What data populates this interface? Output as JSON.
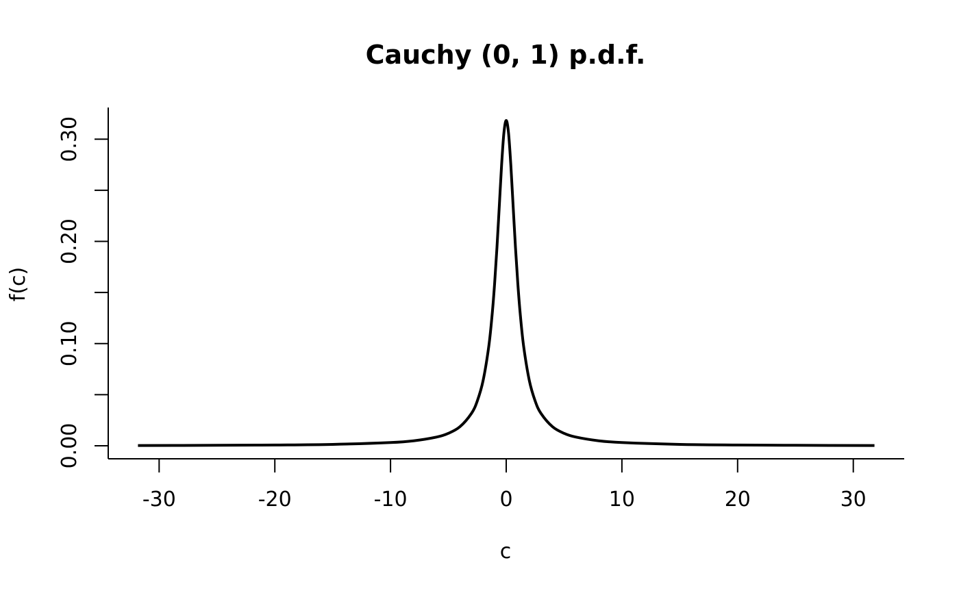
{
  "chart_data": {
    "type": "line",
    "title": "Cauchy (0, 1) p.d.f.",
    "xlabel": "c",
    "ylabel": "f(c)",
    "xlim": [
      -34.4,
      34.4
    ],
    "ylim": [
      -0.0127,
      0.331
    ],
    "x_ticks": [
      -30,
      -20,
      -10,
      0,
      10,
      20,
      30
    ],
    "x_tick_labels": [
      "-30",
      "-20",
      "-10",
      "0",
      "10",
      "20",
      "30"
    ],
    "y_ticks": [
      0,
      0.05,
      0.1,
      0.15,
      0.2,
      0.25,
      0.3
    ],
    "y_tick_labels": [
      "0.00",
      "",
      "0.10",
      "",
      "0.20",
      "",
      "0.30"
    ],
    "grid": false,
    "series": [
      {
        "x": [
          -31.83,
          -25,
          -20,
          -15,
          -10,
          -8,
          -6,
          -5,
          -4,
          -3,
          -2.5,
          -2,
          -1.5,
          -1.2,
          -1,
          -0.8,
          -0.6,
          -0.4,
          -0.2,
          0,
          0.2,
          0.4,
          0.6,
          0.8,
          1,
          1.2,
          1.5,
          2,
          2.5,
          3,
          4,
          5,
          6,
          8,
          10,
          15,
          20,
          25,
          31.83
        ],
        "y": [
          0.0003,
          0.0005,
          0.0008,
          0.0014,
          0.0032,
          0.0049,
          0.0086,
          0.0122,
          0.0187,
          0.0318,
          0.0439,
          0.0637,
          0.0979,
          0.1305,
          0.1592,
          0.1941,
          0.2341,
          0.2745,
          0.3061,
          0.3183,
          0.3061,
          0.2745,
          0.2341,
          0.1941,
          0.1592,
          0.1305,
          0.0979,
          0.0637,
          0.0439,
          0.0318,
          0.0187,
          0.0122,
          0.0086,
          0.0049,
          0.0032,
          0.0014,
          0.0008,
          0.0005,
          0.0003
        ]
      }
    ]
  }
}
